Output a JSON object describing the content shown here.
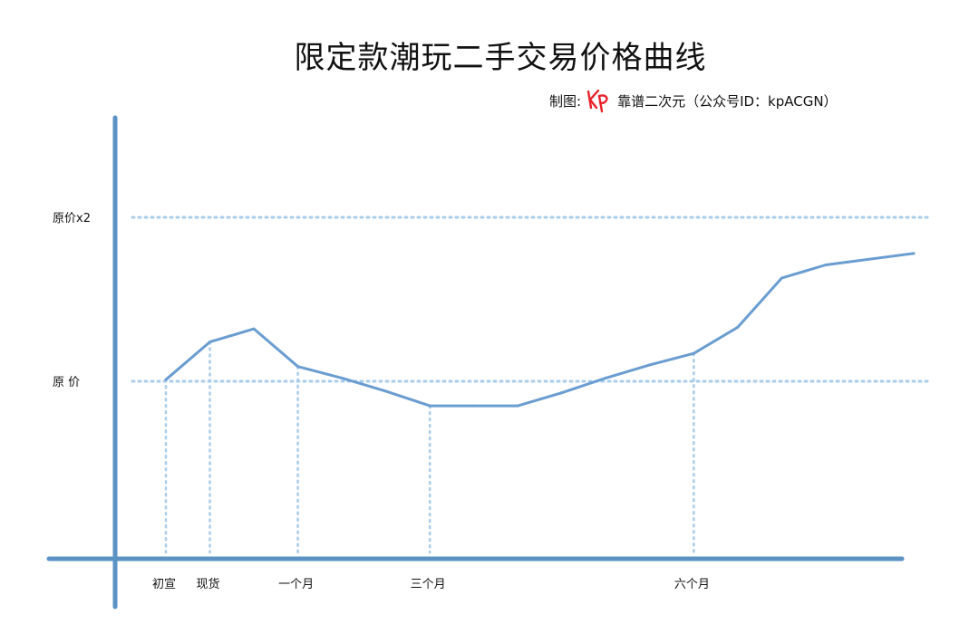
{
  "title": "限定款潮玩二手交易价格曲线",
  "credit": {
    "prefix": "制图:",
    "logo_text": "KP",
    "text": "靠谱二次元（公众号ID：kpACGN）"
  },
  "colors": {
    "axis": "#5B93C4",
    "line": "#6A9DD0",
    "dotted": "#A9CDEB",
    "logo": "#E8222A",
    "text": "#111111"
  },
  "chart_data": {
    "type": "line",
    "title": "限定款潮玩二手交易价格曲线",
    "xlabel": "",
    "ylabel": "",
    "y_unit": "× 原价",
    "ylim": [
      0,
      2.4
    ],
    "y_ticks": [
      {
        "label": "原价x2",
        "value": 2.0
      },
      {
        "label": "原  价",
        "value": 1.0
      }
    ],
    "x_ticks": [
      {
        "label": "初宣",
        "x": 1
      },
      {
        "label": "现货",
        "x": 2
      },
      {
        "label": "一个月",
        "x": 4
      },
      {
        "label": "三个月",
        "x": 7
      },
      {
        "label": "六个月",
        "x": 13
      }
    ],
    "xlim": [
      0,
      18
    ],
    "series": [
      {
        "x": [
          1,
          2,
          3,
          4,
          5,
          6,
          7,
          8,
          9,
          10,
          11,
          12,
          13,
          14,
          15,
          16,
          18
        ],
        "values": [
          1.01,
          1.24,
          1.32,
          1.09,
          1.02,
          0.94,
          0.85,
          0.85,
          0.85,
          0.93,
          1.02,
          1.1,
          1.17,
          1.33,
          1.63,
          1.71,
          1.78
        ]
      }
    ],
    "guides": {
      "horizontal_dotted_at": [
        2.0,
        1.0
      ],
      "vertical_dotted_at_x": [
        1,
        2,
        4,
        7,
        13
      ]
    },
    "grid": false,
    "legend": "none"
  }
}
